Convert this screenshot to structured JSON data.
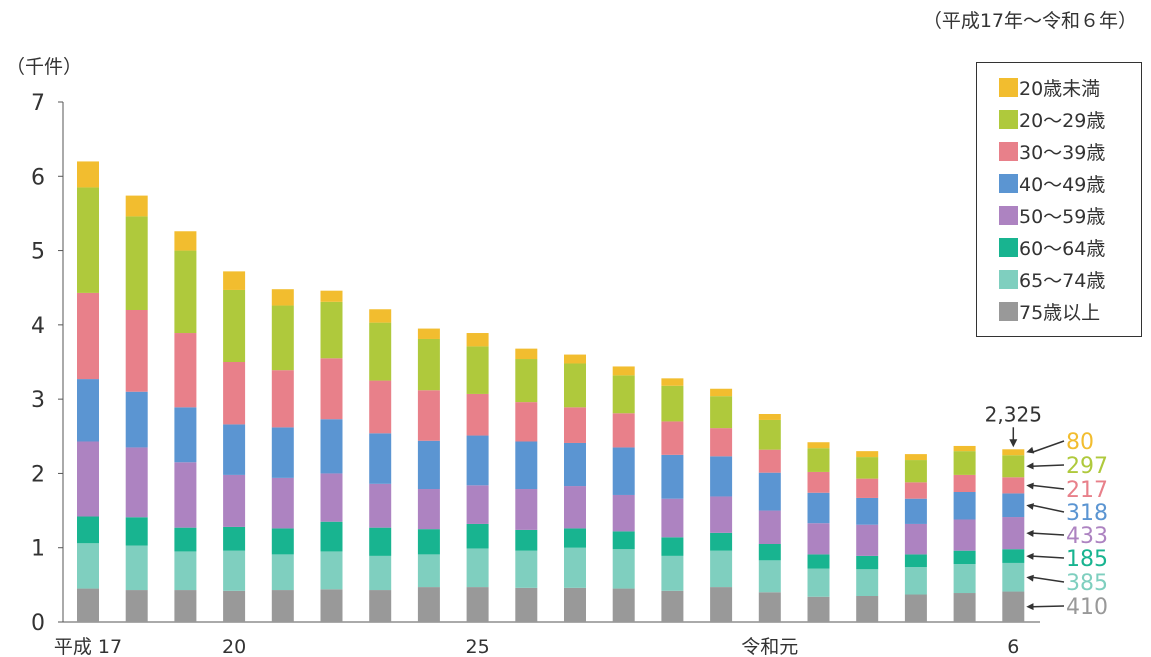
{
  "period_label": "（平成17年～令和６年）",
  "unit_label": "（千件）",
  "colors": {
    "under20": "#f2bd2f",
    "age20s": "#afc93c",
    "age30s": "#e8808a",
    "age40s": "#5b95d2",
    "age50s": "#ad83c1",
    "age60_64": "#18b490",
    "age65_74": "#7fcfbf",
    "age75plus": "#999999"
  },
  "legend": [
    {
      "label": "20歳未満",
      "color": "#f2bd2f"
    },
    {
      "label": "20～29歳",
      "color": "#afc93c"
    },
    {
      "label": "30～39歳",
      "color": "#e8808a"
    },
    {
      "label": "40～49歳",
      "color": "#5b95d2"
    },
    {
      "label": "50～59歳",
      "color": "#ad83c1"
    },
    {
      "label": "60～64歳",
      "color": "#18b490"
    },
    {
      "label": "65～74歳",
      "color": "#7fcfbf"
    },
    {
      "label": "75歳以上",
      "color": "#999999"
    }
  ],
  "chart_data": {
    "type": "bar",
    "stacked": true,
    "ylim": [
      0,
      7
    ],
    "yticks": [
      0,
      1,
      2,
      3,
      4,
      5,
      6,
      7
    ],
    "x": [
      17,
      18,
      19,
      20,
      21,
      22,
      23,
      24,
      25,
      26,
      27,
      28,
      29,
      30,
      1,
      2,
      3,
      4,
      5,
      6
    ],
    "x_tick_labels": [
      {
        "index": 0,
        "label": "平成 17"
      },
      {
        "index": 3,
        "label": "20"
      },
      {
        "index": 8,
        "label": "25"
      },
      {
        "index": 14,
        "label": "令和元"
      },
      {
        "index": 19,
        "label": "6"
      }
    ],
    "series": [
      {
        "name": "75歳以上",
        "color": "#999999",
        "values": [
          0.45,
          0.43,
          0.43,
          0.42,
          0.43,
          0.44,
          0.43,
          0.47,
          0.47,
          0.46,
          0.46,
          0.45,
          0.42,
          0.47,
          0.4,
          0.34,
          0.35,
          0.37,
          0.39,
          0.41
        ]
      },
      {
        "name": "65～74歳",
        "color": "#7fcfbf",
        "values": [
          0.61,
          0.6,
          0.52,
          0.54,
          0.48,
          0.51,
          0.46,
          0.44,
          0.52,
          0.5,
          0.54,
          0.53,
          0.47,
          0.49,
          0.43,
          0.38,
          0.36,
          0.37,
          0.39,
          0.385
        ]
      },
      {
        "name": "60～64歳",
        "color": "#18b490",
        "values": [
          0.36,
          0.38,
          0.32,
          0.32,
          0.35,
          0.4,
          0.38,
          0.34,
          0.33,
          0.28,
          0.26,
          0.24,
          0.25,
          0.24,
          0.22,
          0.19,
          0.18,
          0.17,
          0.18,
          0.185
        ]
      },
      {
        "name": "50～59歳",
        "color": "#ad83c1",
        "values": [
          1.01,
          0.94,
          0.88,
          0.7,
          0.68,
          0.65,
          0.59,
          0.54,
          0.52,
          0.55,
          0.57,
          0.49,
          0.52,
          0.49,
          0.45,
          0.42,
          0.42,
          0.41,
          0.42,
          0.433
        ]
      },
      {
        "name": "40～49歳",
        "color": "#5b95d2",
        "values": [
          0.84,
          0.75,
          0.74,
          0.68,
          0.68,
          0.73,
          0.68,
          0.65,
          0.67,
          0.64,
          0.58,
          0.64,
          0.59,
          0.54,
          0.51,
          0.41,
          0.36,
          0.34,
          0.37,
          0.318
        ]
      },
      {
        "name": "30～39歳",
        "color": "#e8808a",
        "values": [
          1.16,
          1.1,
          1.0,
          0.84,
          0.77,
          0.82,
          0.71,
          0.68,
          0.56,
          0.53,
          0.48,
          0.46,
          0.45,
          0.38,
          0.31,
          0.28,
          0.26,
          0.22,
          0.23,
          0.217
        ]
      },
      {
        "name": "20～29歳",
        "color": "#afc93c",
        "values": [
          1.42,
          1.26,
          1.11,
          0.97,
          0.87,
          0.76,
          0.78,
          0.69,
          0.64,
          0.58,
          0.59,
          0.51,
          0.48,
          0.43,
          0.4,
          0.32,
          0.29,
          0.3,
          0.32,
          0.297
        ]
      },
      {
        "name": "20歳未満",
        "color": "#f2bd2f",
        "values": [
          0.35,
          0.28,
          0.26,
          0.25,
          0.22,
          0.15,
          0.18,
          0.14,
          0.18,
          0.14,
          0.12,
          0.12,
          0.1,
          0.1,
          0.08,
          0.08,
          0.08,
          0.08,
          0.07,
          0.08
        ]
      }
    ],
    "annotations": {
      "total_label": "2,325",
      "last_bar_values": [
        {
          "label": "80",
          "color": "#f2bd2f"
        },
        {
          "label": "297",
          "color": "#afc93c"
        },
        {
          "label": "217",
          "color": "#e8808a"
        },
        {
          "label": "318",
          "color": "#5b95d2"
        },
        {
          "label": "433",
          "color": "#ad83c1"
        },
        {
          "label": "185",
          "color": "#18b490"
        },
        {
          "label": "385",
          "color": "#7fcfbf"
        },
        {
          "label": "410",
          "color": "#999999"
        }
      ]
    }
  }
}
